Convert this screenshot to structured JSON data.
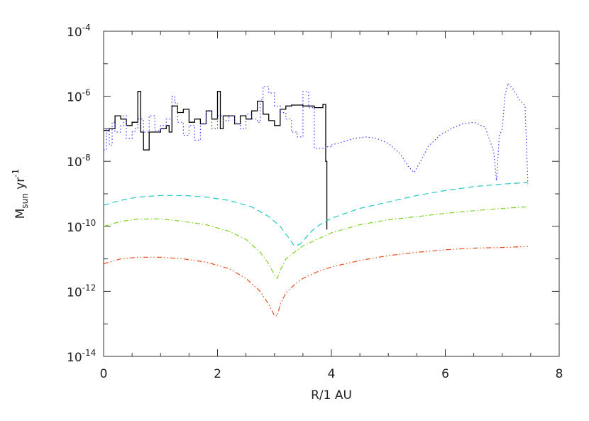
{
  "chart_data": {
    "type": "line",
    "title": "",
    "xlabel": "R/1 AU",
    "ylabel": {
      "base": "M",
      "sub": "sun",
      "mid": " yr",
      "sup": "-1"
    },
    "xlim": [
      0,
      8
    ],
    "ylim_log10": [
      -14,
      -4
    ],
    "yscale": "log",
    "x_ticks": [
      {
        "value": 0,
        "label": "0"
      },
      {
        "value": 2,
        "label": "2"
      },
      {
        "value": 4,
        "label": "4"
      },
      {
        "value": 6,
        "label": "6"
      },
      {
        "value": 8,
        "label": "8"
      }
    ],
    "y_ticks": [
      {
        "log10": -14,
        "base": "10",
        "exp": "-14"
      },
      {
        "log10": -12,
        "base": "10",
        "exp": "-12"
      },
      {
        "log10": -10,
        "base": "10",
        "exp": "-10"
      },
      {
        "log10": -8,
        "base": "10",
        "exp": "-8"
      },
      {
        "log10": -6,
        "base": "10",
        "exp": "-6"
      },
      {
        "log10": -4,
        "base": "10",
        "exp": "-4"
      }
    ],
    "series": [
      {
        "style": "solid",
        "color": "#000000",
        "step": true,
        "x": [
          0.0,
          0.1,
          0.2,
          0.3,
          0.4,
          0.5,
          0.6,
          0.65,
          0.7,
          0.8,
          0.9,
          1.0,
          1.1,
          1.15,
          1.2,
          1.3,
          1.4,
          1.5,
          1.6,
          1.7,
          1.8,
          1.9,
          2.0,
          2.05,
          2.1,
          2.2,
          2.3,
          2.4,
          2.5,
          2.6,
          2.7,
          2.8,
          2.9,
          3.0,
          3.1,
          3.2,
          3.3,
          3.5,
          3.7,
          3.85,
          3.9,
          3.92
        ],
        "log10y": [
          -7.05,
          -7.0,
          -6.6,
          -6.7,
          -6.9,
          -6.8,
          -5.85,
          -7.1,
          -7.65,
          -7.1,
          -7.1,
          -7.0,
          -6.9,
          -7.1,
          -6.3,
          -6.5,
          -6.4,
          -6.8,
          -6.7,
          -6.85,
          -6.45,
          -6.7,
          -5.85,
          -7.0,
          -6.6,
          -6.6,
          -6.85,
          -6.6,
          -6.7,
          -6.45,
          -6.15,
          -6.55,
          -6.75,
          -6.9,
          -6.4,
          -6.3,
          -6.27,
          -6.3,
          -6.35,
          -6.25,
          -8.0,
          -10.1
        ]
      },
      {
        "style": "dotted",
        "color": "#3a3aff",
        "step": true,
        "x": [
          0.0,
          0.05,
          0.1,
          0.15,
          0.2,
          0.3,
          0.35,
          0.4,
          0.5,
          0.55,
          0.6,
          0.7,
          0.8,
          0.9,
          1.0,
          1.1,
          1.2,
          1.25,
          1.3,
          1.4,
          1.5,
          1.6,
          1.7,
          1.8,
          1.9,
          2.0,
          2.1,
          2.2,
          2.3,
          2.4,
          2.5,
          2.6,
          2.7,
          2.75,
          2.8,
          2.9,
          3.0,
          3.1,
          3.2,
          3.3,
          3.4,
          3.5,
          3.6,
          3.7,
          3.8,
          3.9,
          4.0
        ],
        "log10y": [
          -7.65,
          -7.0,
          -7.5,
          -6.8,
          -7.1,
          -6.9,
          -6.6,
          -7.3,
          -7.1,
          -7.0,
          -6.7,
          -7.1,
          -6.6,
          -7.05,
          -6.9,
          -6.7,
          -6.0,
          -6.2,
          -6.8,
          -7.2,
          -6.9,
          -7.35,
          -6.85,
          -6.45,
          -7.0,
          -6.6,
          -6.75,
          -6.6,
          -6.85,
          -7.0,
          -6.55,
          -6.7,
          -6.8,
          -6.1,
          -5.7,
          -5.9,
          -6.3,
          -6.5,
          -6.7,
          -7.1,
          -7.25,
          -5.85,
          -6.35,
          -7.6,
          -7.6,
          -7.55,
          -7.55
        ]
      },
      {
        "style": "dotted",
        "color": "#3a3aff",
        "step": false,
        "x": [
          4.0,
          4.2,
          4.4,
          4.6,
          4.8,
          5.0,
          5.2,
          5.35,
          5.45,
          5.55,
          5.7,
          5.9,
          6.1,
          6.3,
          6.5,
          6.7,
          6.85,
          6.9,
          6.95,
          7.0,
          7.05,
          7.1,
          7.2,
          7.3,
          7.4,
          7.45
        ],
        "log10y": [
          -7.5,
          -7.4,
          -7.3,
          -7.25,
          -7.3,
          -7.45,
          -7.75,
          -8.15,
          -8.35,
          -8.05,
          -7.55,
          -7.2,
          -7.0,
          -6.85,
          -6.8,
          -6.95,
          -7.7,
          -8.6,
          -7.2,
          -7.0,
          -5.95,
          -5.6,
          -5.8,
          -6.1,
          -6.3,
          -8.7
        ]
      },
      {
        "style": "dashed",
        "color": "#22c7c7",
        "step": false,
        "x": [
          0.0,
          0.3,
          0.6,
          1.0,
          1.4,
          1.8,
          2.2,
          2.6,
          2.9,
          3.1,
          3.25,
          3.35,
          3.45,
          3.55,
          3.65,
          3.8,
          4.0,
          4.5,
          5.0,
          5.5,
          6.0,
          6.5,
          7.0,
          7.45
        ],
        "log10y": [
          -9.35,
          -9.2,
          -9.1,
          -9.05,
          -9.05,
          -9.1,
          -9.2,
          -9.4,
          -9.7,
          -10.0,
          -10.35,
          -10.6,
          -10.55,
          -10.35,
          -10.15,
          -9.95,
          -9.75,
          -9.45,
          -9.25,
          -9.05,
          -8.9,
          -8.78,
          -8.7,
          -8.65
        ]
      },
      {
        "style": "dashdot",
        "color": "#7ed321",
        "step": false,
        "x": [
          0.0,
          0.3,
          0.6,
          1.0,
          1.4,
          1.8,
          2.2,
          2.5,
          2.75,
          2.9,
          3.0,
          3.05,
          3.1,
          3.2,
          3.35,
          3.5,
          3.75,
          4.0,
          4.5,
          5.0,
          5.5,
          6.0,
          6.5,
          7.0,
          7.45
        ],
        "log10y": [
          -10.0,
          -9.85,
          -9.78,
          -9.77,
          -9.85,
          -9.95,
          -10.15,
          -10.4,
          -10.8,
          -11.15,
          -11.5,
          -11.6,
          -11.35,
          -11.0,
          -10.8,
          -10.6,
          -10.4,
          -10.2,
          -9.95,
          -9.8,
          -9.7,
          -9.6,
          -9.52,
          -9.45,
          -9.4
        ]
      },
      {
        "style": "dashdotdot",
        "color": "#e84c1c",
        "step": false,
        "x": [
          0.0,
          0.3,
          0.6,
          1.0,
          1.4,
          1.8,
          2.2,
          2.5,
          2.75,
          2.9,
          3.0,
          3.05,
          3.1,
          3.2,
          3.35,
          3.5,
          3.75,
          4.0,
          4.5,
          5.0,
          5.5,
          6.0,
          6.5,
          7.0,
          7.45
        ],
        "log10y": [
          -11.15,
          -11.0,
          -10.95,
          -10.95,
          -11.0,
          -11.1,
          -11.3,
          -11.6,
          -12.0,
          -12.4,
          -12.75,
          -12.75,
          -12.4,
          -12.05,
          -11.8,
          -11.6,
          -11.4,
          -11.25,
          -11.05,
          -10.9,
          -10.8,
          -10.72,
          -10.67,
          -10.65,
          -10.62
        ]
      }
    ]
  }
}
